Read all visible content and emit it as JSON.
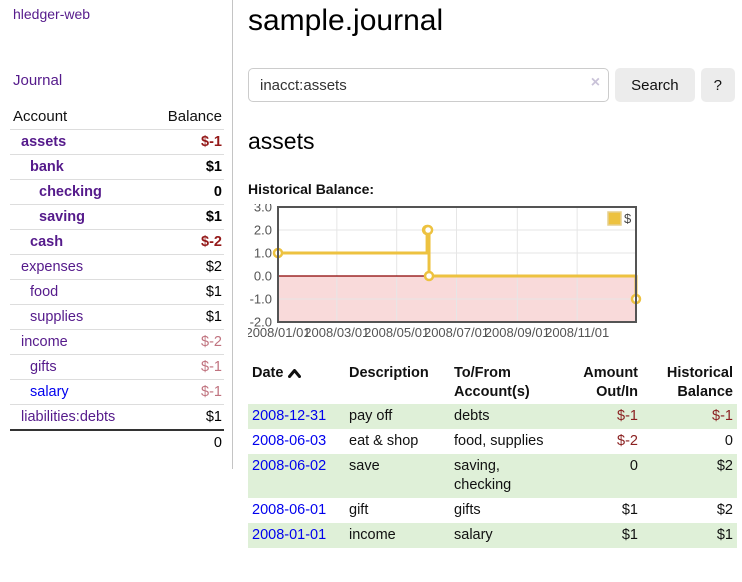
{
  "app": {
    "title": "hledger-web",
    "nav_journal": "Journal"
  },
  "colors": {
    "purple": "#551a8b",
    "blue": "#0000ee",
    "neg_strong": "#941919",
    "neg": "#8b2121",
    "neg_muted": "#c0737f",
    "row_green": "#dff0d8",
    "chart_line": "#edc240",
    "chart_neg_fill": "#f9dada",
    "chart_zero": "#8b0000",
    "grid_border": "#545454"
  },
  "sidebar": {
    "account_header": "Account",
    "balance_header": "Balance",
    "rows": [
      {
        "account": "assets",
        "balance": "$-1",
        "level": 1,
        "strong": true,
        "balance_style": "neg-strong"
      },
      {
        "account": "bank",
        "balance": "$1",
        "level": 2,
        "strong": true,
        "balance_style": "pos-strong"
      },
      {
        "account": "checking",
        "balance": "0",
        "level": 3,
        "strong": true,
        "balance_style": "pos-strong"
      },
      {
        "account": "saving",
        "balance": "$1",
        "level": 3,
        "strong": true,
        "balance_style": "pos-strong"
      },
      {
        "account": "cash",
        "balance": "$-2",
        "level": 2,
        "strong": true,
        "balance_style": "neg-strong"
      },
      {
        "account": "expenses",
        "balance": "$2",
        "level": 1,
        "strong": false,
        "balance_style": "pos"
      },
      {
        "account": "food",
        "balance": "$1",
        "level": 2,
        "strong": false,
        "balance_style": "pos"
      },
      {
        "account": "supplies",
        "balance": "$1",
        "level": 2,
        "strong": false,
        "balance_style": "pos"
      },
      {
        "account": "income",
        "balance": "$-2",
        "level": 1,
        "strong": false,
        "balance_style": "neg-muted"
      },
      {
        "account": "gifts",
        "balance": "$-1",
        "level": 2,
        "strong": false,
        "balance_style": "neg-muted"
      },
      {
        "account": "salary",
        "balance": "$-1",
        "level": 2,
        "strong": false,
        "balance_style": "neg-muted",
        "link_style": "unvisited"
      },
      {
        "account": "liabilities:debts",
        "balance": "$1",
        "level": 1,
        "strong": false,
        "balance_style": "pos"
      }
    ],
    "total": "0"
  },
  "main": {
    "title": "sample.journal",
    "search": {
      "value": "inacct:assets",
      "clear_icon": "×",
      "button": "Search",
      "help_button": "?"
    },
    "account_heading": "assets",
    "chart_label": "Historical Balance:"
  },
  "chart_data": {
    "type": "line",
    "title": "Historical Balance:",
    "step": true,
    "xrange": [
      "2008/01/01",
      "2008/12/31"
    ],
    "ylim": [
      -2,
      3
    ],
    "yticks": [
      3.0,
      2.0,
      1.0,
      0.0,
      -1.0,
      -2.0
    ],
    "xticks": [
      "2008/01/01",
      "2008/03/01",
      "2008/05/01",
      "2008/07/01",
      "2008/09/01",
      "2008/11/01"
    ],
    "series": [
      {
        "name": "$",
        "color": "#edc240",
        "points": [
          [
            "2008/01/01",
            1
          ],
          [
            "2008/06/01",
            2
          ],
          [
            "2008/06/02",
            2
          ],
          [
            "2008/06/03",
            0
          ],
          [
            "2008/12/31",
            -1
          ]
        ]
      }
    ],
    "negative_region": {
      "below": 0,
      "color": "#f9dada",
      "line_color": "#8b0000"
    },
    "legend": [
      "$"
    ],
    "legend_position": "top-right",
    "grid": true
  },
  "register": {
    "headers": [
      {
        "lines": [
          "Date"
        ],
        "align": "left",
        "sorted": "asc"
      },
      {
        "lines": [
          "Description"
        ],
        "align": "left"
      },
      {
        "lines": [
          "To/From",
          "Account(s)"
        ],
        "align": "left"
      },
      {
        "lines": [
          "Amount",
          "Out/In"
        ],
        "align": "right"
      },
      {
        "lines": [
          "Historical",
          "Balance"
        ],
        "align": "right"
      }
    ],
    "rows": [
      {
        "date": "2008-12-31",
        "description": "pay off",
        "accounts": "debts",
        "amount": "$-1",
        "amount_neg": true,
        "balance": "$-1",
        "balance_neg": true
      },
      {
        "date": "2008-06-03",
        "description": "eat & shop",
        "accounts": "food, supplies",
        "amount": "$-2",
        "amount_neg": true,
        "balance": "0",
        "balance_neg": false
      },
      {
        "date": "2008-06-02",
        "description": "save",
        "accounts": "saving, checking",
        "amount": "0",
        "amount_neg": false,
        "balance": "$2",
        "balance_neg": false
      },
      {
        "date": "2008-06-01",
        "description": "gift",
        "accounts": "gifts",
        "amount": "$1",
        "amount_neg": false,
        "balance": "$2",
        "balance_neg": false
      },
      {
        "date": "2008-01-01",
        "description": "income",
        "accounts": "salary",
        "amount": "$1",
        "amount_neg": false,
        "balance": "$1",
        "balance_neg": false
      }
    ]
  }
}
